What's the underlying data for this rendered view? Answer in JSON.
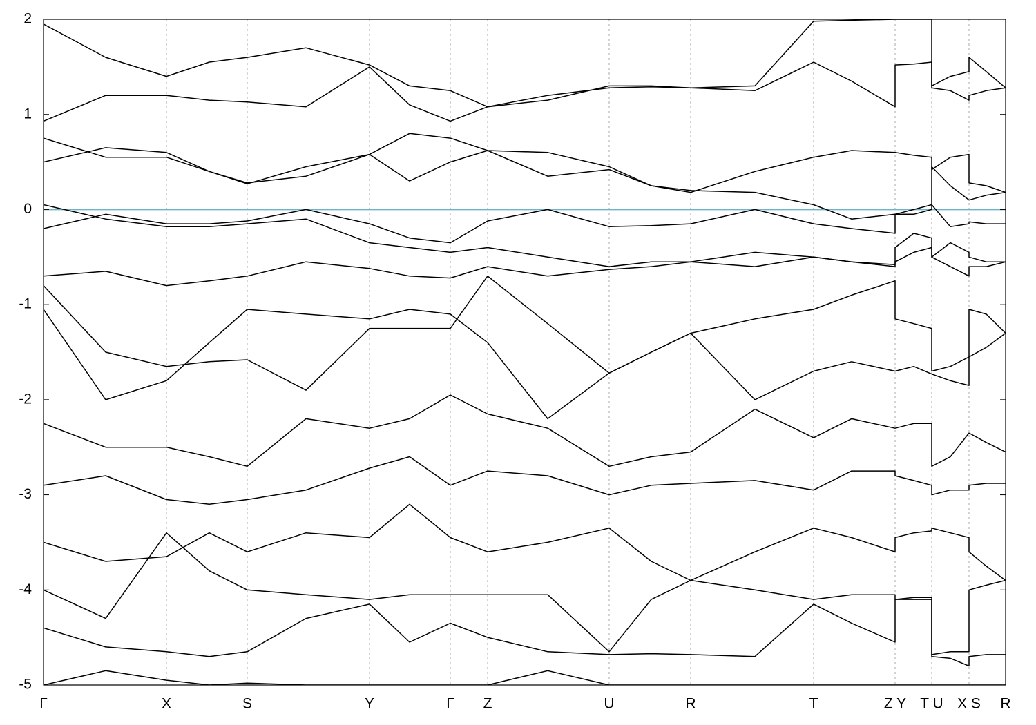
{
  "chart_data": {
    "type": "line",
    "x": [
      0,
      0.9,
      1.78,
      2.4,
      2.95,
      3.8,
      4.72,
      5.3,
      5.89,
      6.43,
      7.3,
      8.19,
      8.8,
      9.37,
      10.3,
      11.15,
      11.7,
      12.33,
      12.33,
      12.6,
      12.86,
      12.86,
      13.13,
      13.4,
      13.4,
      13.65,
      13.93
    ],
    "xlim": [
      0,
      13.93
    ],
    "xticks": [
      {
        "value": 0,
        "label": "Γ"
      },
      {
        "value": 1.78,
        "label": "X"
      },
      {
        "value": 2.95,
        "label": "S"
      },
      {
        "value": 4.72,
        "label": "Y"
      },
      {
        "value": 5.89,
        "label": "Γ"
      },
      {
        "value": 6.43,
        "label": "Z"
      },
      {
        "value": 8.19,
        "label": "U"
      },
      {
        "value": 9.37,
        "label": "R"
      },
      {
        "value": 11.15,
        "label": "T"
      },
      {
        "value": 12.33,
        "label": "Z Y"
      },
      {
        "value": 12.86,
        "label": "T U"
      },
      {
        "value": 13.4,
        "label": "X S"
      },
      {
        "value": 13.93,
        "label": "R"
      }
    ],
    "ylim": [
      -5,
      2
    ],
    "yticks": [
      -5,
      -4,
      -3,
      -2,
      -1,
      0,
      1,
      2
    ],
    "xgrid": true,
    "line_color": "#000000",
    "hlines": [
      {
        "y": 0,
        "color": "#6fb3c8"
      }
    ],
    "series": [
      {
        "values": [
          1.95,
          1.6,
          1.4,
          1.55,
          1.6,
          1.7,
          1.52,
          1.3,
          1.25,
          1.08,
          1.15,
          1.3,
          1.3,
          1.28,
          1.25,
          1.55,
          1.35,
          1.08,
          1.52,
          1.53,
          1.55,
          1.3,
          1.4,
          1.45,
          1.6,
          1.45,
          1.28
        ]
      },
      {
        "values": [
          0.93,
          1.2,
          1.2,
          1.15,
          1.13,
          1.08,
          1.5,
          1.1,
          0.93,
          1.08,
          1.2,
          1.28,
          1.29,
          1.28,
          1.3,
          1.98,
          1.99,
          2.0,
          2.0,
          2.0,
          2.0,
          1.28,
          1.25,
          1.15,
          1.2,
          1.25,
          1.28
        ]
      },
      {
        "values": [
          0.75,
          0.55,
          0.55,
          0.4,
          0.27,
          0.45,
          0.58,
          0.8,
          0.75,
          0.62,
          0.6,
          0.45,
          0.25,
          0.18,
          0.4,
          0.55,
          0.62,
          0.6,
          0.6,
          0.57,
          0.55,
          0.42,
          0.55,
          0.58,
          0.28,
          0.25,
          0.18
        ]
      },
      {
        "values": [
          0.5,
          0.65,
          0.6,
          0.4,
          0.28,
          0.35,
          0.58,
          0.3,
          0.5,
          0.62,
          0.35,
          0.42,
          0.25,
          0.2,
          0.18,
          0.05,
          -0.1,
          -0.05,
          -0.05,
          0.0,
          0.05,
          0.45,
          0.25,
          0.1,
          0.1,
          0.15,
          0.18
        ]
      },
      {
        "values": [
          -0.2,
          -0.05,
          -0.15,
          -0.15,
          -0.12,
          0.0,
          -0.15,
          -0.3,
          -0.35,
          -0.12,
          0.0,
          -0.18,
          -0.17,
          -0.15,
          0.0,
          -0.15,
          -0.2,
          -0.25,
          -0.05,
          -0.05,
          0.0,
          0.05,
          -0.18,
          -0.15,
          -0.13,
          -0.15,
          -0.15
        ]
      },
      {
        "values": [
          0.05,
          -0.1,
          -0.18,
          -0.18,
          -0.15,
          -0.1,
          -0.35,
          -0.4,
          -0.45,
          -0.4,
          -0.5,
          -0.6,
          -0.55,
          -0.55,
          -0.45,
          -0.5,
          -0.55,
          -0.6,
          -0.4,
          -0.25,
          -0.3,
          -0.5,
          -0.35,
          -0.45,
          -0.5,
          -0.55,
          -0.55
        ]
      },
      {
        "values": [
          -0.7,
          -0.65,
          -0.8,
          -0.75,
          -0.7,
          -0.55,
          -0.62,
          -0.7,
          -0.72,
          -0.6,
          -0.7,
          -0.63,
          -0.6,
          -0.55,
          -0.6,
          -0.5,
          -0.55,
          -0.58,
          -0.55,
          -0.45,
          -0.4,
          -0.5,
          -0.6,
          -0.7,
          -0.6,
          -0.6,
          -0.55
        ]
      },
      {
        "values": [
          -0.8,
          -1.5,
          -1.65,
          -1.6,
          -1.58,
          -1.9,
          -1.25,
          -1.25,
          -1.25,
          -0.7,
          -1.2,
          -1.72,
          -1.5,
          -1.3,
          -1.15,
          -1.05,
          -0.9,
          -0.75,
          -1.15,
          -1.2,
          -1.25,
          -1.7,
          -1.65,
          -1.55,
          -1.05,
          -1.1,
          -1.3
        ]
      },
      {
        "values": [
          -1.05,
          -2.0,
          -1.8,
          -1.4,
          -1.05,
          -1.1,
          -1.15,
          -1.05,
          -1.1,
          -1.4,
          -2.2,
          -1.72,
          -1.5,
          -1.3,
          -2.0,
          -1.7,
          -1.6,
          -1.7,
          -1.7,
          -1.65,
          -1.73,
          -1.73,
          -1.8,
          -1.85,
          -1.55,
          -1.45,
          -1.3
        ]
      },
      {
        "values": [
          -2.25,
          -2.5,
          -2.5,
          -2.6,
          -2.7,
          -2.2,
          -2.3,
          -2.2,
          -1.95,
          -2.15,
          -2.3,
          -2.7,
          -2.6,
          -2.55,
          -2.1,
          -2.4,
          -2.2,
          -2.3,
          -2.3,
          -2.25,
          -2.25,
          -2.7,
          -2.6,
          -2.35,
          -2.35,
          -2.45,
          -2.55
        ]
      },
      {
        "values": [
          -2.9,
          -2.8,
          -3.05,
          -3.1,
          -3.05,
          -2.95,
          -2.72,
          -2.6,
          -2.9,
          -2.75,
          -2.8,
          -3.0,
          -2.9,
          -2.88,
          -2.85,
          -2.95,
          -2.75,
          -2.75,
          -2.8,
          -2.85,
          -2.9,
          -3.0,
          -2.95,
          -2.95,
          -2.9,
          -2.88,
          -2.88
        ]
      },
      {
        "values": [
          -3.5,
          -3.7,
          -3.65,
          -3.4,
          -3.6,
          -3.4,
          -3.45,
          -3.1,
          -3.45,
          -3.6,
          -3.5,
          -3.35,
          -3.7,
          -3.9,
          -3.6,
          -3.35,
          -3.45,
          -3.6,
          -3.45,
          -3.4,
          -3.38,
          -3.35,
          -3.4,
          -3.45,
          -3.6,
          -3.75,
          -3.9
        ]
      },
      {
        "values": [
          -4.0,
          -4.3,
          -3.4,
          -3.8,
          -4.0,
          -4.05,
          -4.1,
          -4.05,
          -4.05,
          -4.05,
          -4.05,
          -4.65,
          -4.1,
          -3.9,
          -4.0,
          -4.1,
          -4.05,
          -4.05,
          -4.1,
          -4.1,
          -4.1,
          -4.68,
          -4.65,
          -4.65,
          -4.0,
          -3.95,
          -3.9
        ]
      },
      {
        "values": [
          -4.4,
          -4.6,
          -4.65,
          -4.7,
          -4.65,
          -4.3,
          -4.15,
          -4.55,
          -4.35,
          -4.5,
          -4.65,
          -4.68,
          -4.67,
          -4.68,
          -4.7,
          -4.15,
          -4.35,
          -4.55,
          -4.1,
          -4.08,
          -4.08,
          -4.7,
          -4.72,
          -4.8,
          -4.7,
          -4.68,
          -4.68
        ]
      },
      {
        "values": [
          -5.0,
          -4.85,
          -4.95,
          -5.0,
          -4.98,
          -5.0,
          -5.0,
          -5.0,
          -5.0,
          -5.0,
          -4.85,
          -5.0,
          -5.0,
          -5.0,
          -5.0,
          -5.0,
          -5.0,
          -5.0,
          -5.0,
          -5.0,
          -5.0,
          -5.0,
          -5.0,
          -5.0,
          -5.0,
          -5.0,
          -5.0
        ]
      }
    ]
  }
}
